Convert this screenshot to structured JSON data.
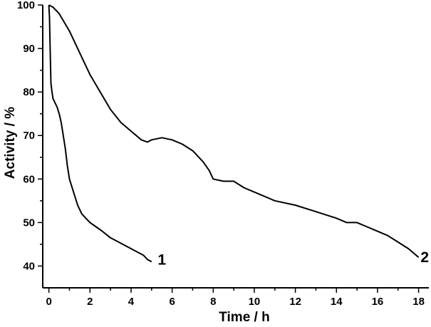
{
  "chart_data": {
    "type": "line",
    "title": "",
    "xlabel": "Time / h",
    "ylabel": "Activity / %",
    "xlim": [
      -0.3,
      18.5
    ],
    "ylim": [
      35,
      100
    ],
    "x_ticks": [
      0,
      2,
      4,
      6,
      8,
      10,
      12,
      14,
      16,
      18
    ],
    "y_ticks": [
      40,
      50,
      60,
      70,
      80,
      90,
      100
    ],
    "grid": false,
    "legend": "none",
    "series": [
      {
        "name": "1",
        "x": [
          0,
          0.03,
          0.06,
          0.1,
          0.15,
          0.2,
          0.3,
          0.4,
          0.5,
          0.6,
          0.7,
          0.8,
          0.9,
          1.0,
          1.2,
          1.4,
          1.6,
          1.8,
          2.0,
          2.3,
          2.6,
          3.0,
          3.4,
          3.8,
          4.2,
          4.6,
          4.8,
          5.0
        ],
        "values": [
          100,
          97,
          90,
          82,
          80,
          78.5,
          77.5,
          76.5,
          75,
          73,
          70,
          67,
          63,
          60,
          57,
          54,
          52,
          51,
          50,
          49,
          48,
          46.5,
          45.5,
          44.5,
          43.5,
          42.5,
          41.5,
          41
        ]
      },
      {
        "name": "2",
        "x": [
          0,
          0.2,
          0.5,
          1.0,
          1.5,
          2.0,
          2.5,
          3.0,
          3.5,
          4.0,
          4.5,
          4.8,
          5.0,
          5.5,
          6.0,
          6.5,
          7.0,
          7.5,
          7.8,
          8.0,
          8.5,
          9.0,
          9.5,
          10.0,
          11.0,
          12.0,
          13.0,
          14.0,
          14.5,
          15.0,
          15.5,
          16.0,
          16.5,
          17.0,
          17.5,
          18.0
        ],
        "values": [
          100,
          99.5,
          98,
          94,
          89,
          84,
          80,
          76,
          73,
          71,
          69,
          68.5,
          69,
          69.5,
          69,
          68,
          66.5,
          64,
          62,
          60,
          59.5,
          59.5,
          58,
          57,
          55,
          54,
          52.5,
          51,
          50,
          50,
          49,
          48,
          47,
          45.5,
          44,
          42
        ]
      }
    ],
    "series_labels": [
      {
        "text": "1",
        "x": 5.5,
        "y": 41.5
      },
      {
        "text": "2",
        "x": 18.3,
        "y": 42
      }
    ]
  }
}
